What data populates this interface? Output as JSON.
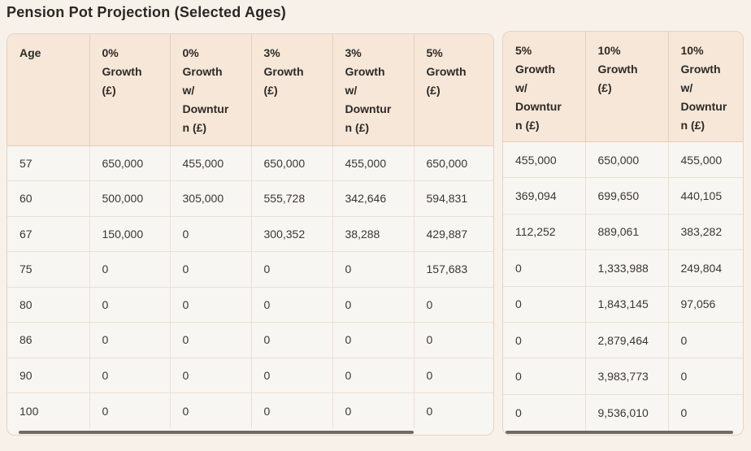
{
  "title": "Pension Pot Projection (Selected Ages)",
  "left_table": {
    "headers": [
      "Age",
      "0%\nGrowth\n(£)",
      "0%\nGrowth\nw/\nDowntur\nn (£)",
      "3%\nGrowth\n(£)",
      "3%\nGrowth\nw/\nDowntur\nn (£)",
      "5%\nGrowth\n(£)"
    ],
    "rows": [
      [
        "57",
        "650,000",
        "455,000",
        "650,000",
        "455,000",
        "650,000"
      ],
      [
        "60",
        "500,000",
        "305,000",
        "555,728",
        "342,646",
        "594,831"
      ],
      [
        "67",
        "150,000",
        "0",
        "300,352",
        "38,288",
        "429,887"
      ],
      [
        "75",
        "0",
        "0",
        "0",
        "0",
        "157,683"
      ],
      [
        "80",
        "0",
        "0",
        "0",
        "0",
        "0"
      ],
      [
        "86",
        "0",
        "0",
        "0",
        "0",
        "0"
      ],
      [
        "90",
        "0",
        "0",
        "0",
        "0",
        "0"
      ],
      [
        "100",
        "0",
        "0",
        "0",
        "0",
        "0"
      ]
    ]
  },
  "right_table": {
    "headers": [
      "5%\nGrowth\nw/\nDowntur\nn (£)",
      "10%\nGrowth\n(£)",
      "10%\nGrowth\nw/\nDowntur\nn (£)"
    ],
    "rows": [
      [
        "455,000",
        "650,000",
        "455,000"
      ],
      [
        "369,094",
        "699,650",
        "440,105"
      ],
      [
        "112,252",
        "889,061",
        "383,282"
      ],
      [
        "0",
        "1,333,988",
        "249,804"
      ],
      [
        "0",
        "1,843,145",
        "97,056"
      ],
      [
        "0",
        "2,879,464",
        "0"
      ],
      [
        "0",
        "3,983,773",
        "0"
      ],
      [
        "0",
        "9,536,010",
        "0"
      ]
    ]
  },
  "chart_data": {
    "type": "table",
    "title": "Pension Pot Projection (Selected Ages)",
    "columns": [
      "Age",
      "0% Growth (£)",
      "0% Growth w/ Downturn (£)",
      "3% Growth (£)",
      "3% Growth w/ Downturn (£)",
      "5% Growth (£)",
      "5% Growth w/ Downturn (£)",
      "10% Growth (£)",
      "10% Growth w/ Downturn (£)"
    ],
    "rows": [
      [
        57,
        650000,
        455000,
        650000,
        455000,
        650000,
        455000,
        650000,
        455000
      ],
      [
        60,
        500000,
        305000,
        555728,
        342646,
        594831,
        369094,
        699650,
        440105
      ],
      [
        67,
        150000,
        0,
        300352,
        38288,
        429887,
        112252,
        889061,
        383282
      ],
      [
        75,
        0,
        0,
        0,
        0,
        157683,
        0,
        1333988,
        249804
      ],
      [
        80,
        0,
        0,
        0,
        0,
        0,
        0,
        1843145,
        97056
      ],
      [
        86,
        0,
        0,
        0,
        0,
        0,
        0,
        2879464,
        0
      ],
      [
        90,
        0,
        0,
        0,
        0,
        0,
        0,
        3983773,
        0
      ],
      [
        100,
        0,
        0,
        0,
        0,
        0,
        0,
        9536010,
        0
      ]
    ]
  },
  "colors": {
    "page_background": "#f7f1ea",
    "header_background": "#f6e7d8",
    "row_background": "#f8f6f3",
    "border": "#e5d3c1",
    "title_text": "#2b2724",
    "cell_text": "#3a3733",
    "scrollbar_thumb": "#6f6b67"
  }
}
